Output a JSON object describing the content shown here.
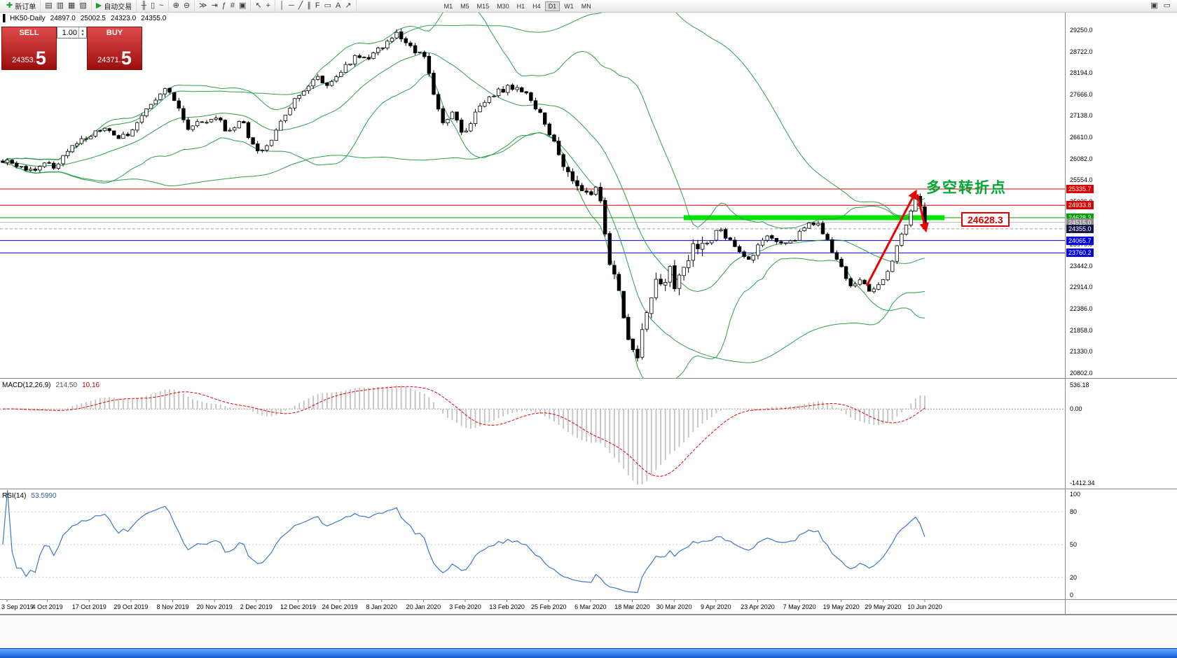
{
  "toolbar": {
    "groups": [
      {
        "items": [
          {
            "name": "new-order-button",
            "glyph": "✚",
            "glyph_color": "#1a9c2e",
            "label": "新订单"
          }
        ]
      },
      {
        "items": [
          {
            "name": "charts-icon",
            "glyph": "▤"
          },
          {
            "name": "profiles-icon",
            "glyph": "▥"
          },
          {
            "name": "market-watch-icon",
            "glyph": "▦"
          },
          {
            "name": "navigator-icon",
            "glyph": "▧"
          }
        ]
      },
      {
        "items": [
          {
            "name": "autotrading-button",
            "glyph": "▶",
            "glyph_color": "#1a9c2e",
            "label": "自动交易"
          }
        ]
      },
      {
        "items": [
          {
            "name": "bar-chart-type-icon",
            "glyph": "╫"
          },
          {
            "name": "candlestick-type-icon",
            "glyph": "▯"
          },
          {
            "name": "line-chart-type-icon",
            "glyph": "~"
          }
        ]
      },
      {
        "items": [
          {
            "name": "zoom-in-icon",
            "glyph": "⊕"
          },
          {
            "name": "zoom-out-icon",
            "glyph": "⊖"
          }
        ]
      },
      {
        "items": [
          {
            "name": "auto-scroll-icon",
            "glyph": "≫"
          },
          {
            "name": "chart-shift-icon",
            "glyph": "⇥"
          },
          {
            "name": "indicators-icon",
            "glyph": "ƒ"
          },
          {
            "name": "grid-icon",
            "glyph": "#"
          },
          {
            "name": "tile-windows-icon",
            "glyph": "▣"
          }
        ]
      },
      {
        "items": [
          {
            "name": "cursor-icon",
            "glyph": "↖"
          },
          {
            "name": "crosshair-icon",
            "glyph": "+"
          }
        ]
      },
      {
        "items": [
          {
            "name": "vertical-line-icon",
            "glyph": "│"
          },
          {
            "name": "horizontal-line-icon",
            "glyph": "─"
          },
          {
            "name": "trendline-icon",
            "glyph": "╱"
          },
          {
            "name": "channel-icon",
            "glyph": "∥"
          },
          {
            "name": "fibonacci-icon",
            "glyph": "F"
          },
          {
            "name": "shapes-icon",
            "glyph": "▭"
          },
          {
            "name": "text-icon",
            "glyph": "A"
          },
          {
            "name": "arrows-icon",
            "glyph": "↗"
          }
        ]
      }
    ],
    "timeframes": [
      "M1",
      "M5",
      "M15",
      "M30",
      "H1",
      "H4",
      "D1",
      "W1",
      "MN"
    ],
    "active_timeframe": "D1",
    "right_items": [
      {
        "name": "window-arrange-icon",
        "glyph": "▣"
      },
      {
        "name": "full-screen-icon",
        "glyph": "▭"
      }
    ]
  },
  "trade_panel": {
    "sell_label": "SELL",
    "buy_label": "BUY",
    "volume": "1.00",
    "spinner_up": "▴",
    "spinner_down": "▾",
    "sell_price_small": "24353.",
    "sell_price_big": "5",
    "buy_price_small": "24371.",
    "buy_price_big": "5"
  },
  "chart_data": {
    "type": "candlestick",
    "header": {
      "icon": "▌",
      "symbol": "HK50-Daily",
      "open": "24897.0",
      "high": "25002.5",
      "low": "24323.0",
      "close": "24355.0"
    },
    "candle_count": 200,
    "y_axis": {
      "min": 20680,
      "max": 29680,
      "tick_labels": [
        "29250.0",
        "28722.0",
        "28194.0",
        "27666.0",
        "27138.0",
        "26610.0",
        "26082.0",
        "25554.0",
        "25026.0",
        "23970.0",
        "23442.0",
        "22914.0",
        "22386.0",
        "21858.0",
        "21330.0",
        "20802.0"
      ]
    },
    "x_axis_labels": [
      "3 Sep 2019",
      "4 Oct 2019",
      "17 Oct 2019",
      "29 Oct 2019",
      "8 Nov 2019",
      "20 Nov 2019",
      "2 Dec 2019",
      "12 Dec 2019",
      "24 Dec 2019",
      "8 Jan 2020",
      "20 Jan 2020",
      "3 Feb 2020",
      "13 Feb 2020",
      "25 Feb 2020",
      "6 Mar 2020",
      "18 Mar 2020",
      "30 Mar 2020",
      "9 Apr 2020",
      "23 Apr 2020",
      "7 May 2020",
      "19 May 2020",
      "29 May 2020",
      "10 Jun 2020"
    ],
    "price_path": [
      [
        0.0,
        26050
      ],
      [
        0.015,
        25900
      ],
      [
        0.03,
        25780
      ],
      [
        0.044,
        26000
      ],
      [
        0.054,
        25850
      ],
      [
        0.068,
        26200
      ],
      [
        0.081,
        26500
      ],
      [
        0.095,
        26650
      ],
      [
        0.11,
        26800
      ],
      [
        0.124,
        26600
      ],
      [
        0.137,
        26700
      ],
      [
        0.156,
        27250
      ],
      [
        0.176,
        27800
      ],
      [
        0.19,
        27400
      ],
      [
        0.202,
        26800
      ],
      [
        0.212,
        26950
      ],
      [
        0.222,
        26900
      ],
      [
        0.232,
        27150
      ],
      [
        0.244,
        26700
      ],
      [
        0.259,
        27000
      ],
      [
        0.27,
        26500
      ],
      [
        0.278,
        26250
      ],
      [
        0.29,
        26400
      ],
      [
        0.3,
        26950
      ],
      [
        0.32,
        27600
      ],
      [
        0.339,
        28100
      ],
      [
        0.354,
        27900
      ],
      [
        0.369,
        28300
      ],
      [
        0.384,
        28650
      ],
      [
        0.396,
        28500
      ],
      [
        0.411,
        28850
      ],
      [
        0.426,
        29150
      ],
      [
        0.436,
        29050
      ],
      [
        0.447,
        28700
      ],
      [
        0.457,
        28600
      ],
      [
        0.467,
        27700
      ],
      [
        0.477,
        26950
      ],
      [
        0.489,
        27250
      ],
      [
        0.5,
        26650
      ],
      [
        0.514,
        27300
      ],
      [
        0.529,
        27650
      ],
      [
        0.546,
        27800
      ],
      [
        0.559,
        27900
      ],
      [
        0.573,
        27500
      ],
      [
        0.586,
        27050
      ],
      [
        0.6,
        26350
      ],
      [
        0.612,
        25850
      ],
      [
        0.626,
        25350
      ],
      [
        0.637,
        25100
      ],
      [
        0.646,
        25400
      ],
      [
        0.652,
        24500
      ],
      [
        0.66,
        23400
      ],
      [
        0.667,
        22800
      ],
      [
        0.675,
        22150
      ],
      [
        0.682,
        21300
      ],
      [
        0.687,
        21050
      ],
      [
        0.692,
        21900
      ],
      [
        0.7,
        22500
      ],
      [
        0.708,
        23200
      ],
      [
        0.715,
        22950
      ],
      [
        0.723,
        23400
      ],
      [
        0.73,
        22850
      ],
      [
        0.738,
        23400
      ],
      [
        0.748,
        23900
      ],
      [
        0.757,
        24100
      ],
      [
        0.766,
        24000
      ],
      [
        0.776,
        24300
      ],
      [
        0.787,
        24100
      ],
      [
        0.799,
        23800
      ],
      [
        0.81,
        23650
      ],
      [
        0.821,
        24000
      ],
      [
        0.833,
        24200
      ],
      [
        0.844,
        23950
      ],
      [
        0.856,
        24050
      ],
      [
        0.867,
        24300
      ],
      [
        0.878,
        24500
      ],
      [
        0.887,
        24400
      ],
      [
        0.897,
        23950
      ],
      [
        0.909,
        23400
      ],
      [
        0.919,
        22900
      ],
      [
        0.93,
        23100
      ],
      [
        0.941,
        22800
      ],
      [
        0.951,
        23000
      ],
      [
        0.96,
        23300
      ],
      [
        0.97,
        23900
      ],
      [
        0.979,
        24400
      ],
      [
        0.987,
        24950
      ],
      [
        0.992,
        25200
      ],
      [
        0.997,
        24750
      ],
      [
        1.0,
        24380
      ]
    ],
    "last_candle": {
      "open": 24897,
      "high": 25002.5,
      "low": 24323,
      "close": 24355
    },
    "hlines": [
      {
        "price": 25335.7,
        "label": "25335.7",
        "color": "#dd0000",
        "style": "solid",
        "width": 1,
        "label_bg": "#dd0000"
      },
      {
        "price": 24933.8,
        "label": "24933.8",
        "color": "#dd0000",
        "style": "solid",
        "width": 1,
        "label_bg": "#dd0000"
      },
      {
        "price": 24628.3,
        "label": "24628.3",
        "color": "#00a000",
        "style": "solid",
        "width": 1,
        "label_bg": "#00a000"
      },
      {
        "price": 24515.0,
        "label": "24515.0",
        "color": "#bcbcbc",
        "style": "solid",
        "width": 1,
        "label_bg": "#8c8c8c"
      },
      {
        "price": 24355.0,
        "label": "24355.0",
        "color": "#9a9a9a",
        "style": "dash",
        "width": 1,
        "label_bg": "#15154a"
      },
      {
        "price": 24065.7,
        "label": "24065.7",
        "color": "#0000dd",
        "style": "solid",
        "width": 1,
        "label_bg": "#0000dd"
      },
      {
        "price": 23760.2,
        "label": "23760.2",
        "color": "#0000dd",
        "style": "solid",
        "width": 1,
        "label_bg": "#0000dd"
      }
    ],
    "green_bar_segment": {
      "from_frac": 0.642,
      "to_frac": 0.887,
      "price": 24628.3,
      "thickness": 7,
      "color": "#00e400"
    },
    "arrows": [
      {
        "from": [
          0.937,
          22950
        ],
        "to": [
          0.99,
          25260
        ]
      },
      {
        "from": [
          0.992,
          25200
        ],
        "to": [
          1.001,
          24330
        ]
      }
    ],
    "annotation": {
      "text": "多空转折点",
      "price_label": "24628.3"
    },
    "indicators": {
      "bollinger": [
        {
          "period": 20,
          "dev": 2.0
        },
        {
          "period": 55,
          "dev": 1.9
        }
      ],
      "macd": {
        "label": "MACD(12,26,9)",
        "main": "214.50",
        "signal": "10.16",
        "axis_labels": [
          "536.18",
          "0.00",
          "-1412.34"
        ]
      },
      "rsi": {
        "label": "RSI(14)",
        "value": "53.5990",
        "levels": [
          80,
          50,
          20
        ],
        "axis_labels": [
          "100",
          "80",
          "50",
          "20",
          "0"
        ]
      }
    },
    "colors": {
      "up": "#ffffff",
      "down": "#000000",
      "candle_stroke": "#000000",
      "band": "#2e9e4a",
      "rsi": "#3c78c8",
      "macd_hist": "#c2c2c2",
      "macd_signal": "#e00000",
      "arrow": "#ee0000"
    }
  }
}
